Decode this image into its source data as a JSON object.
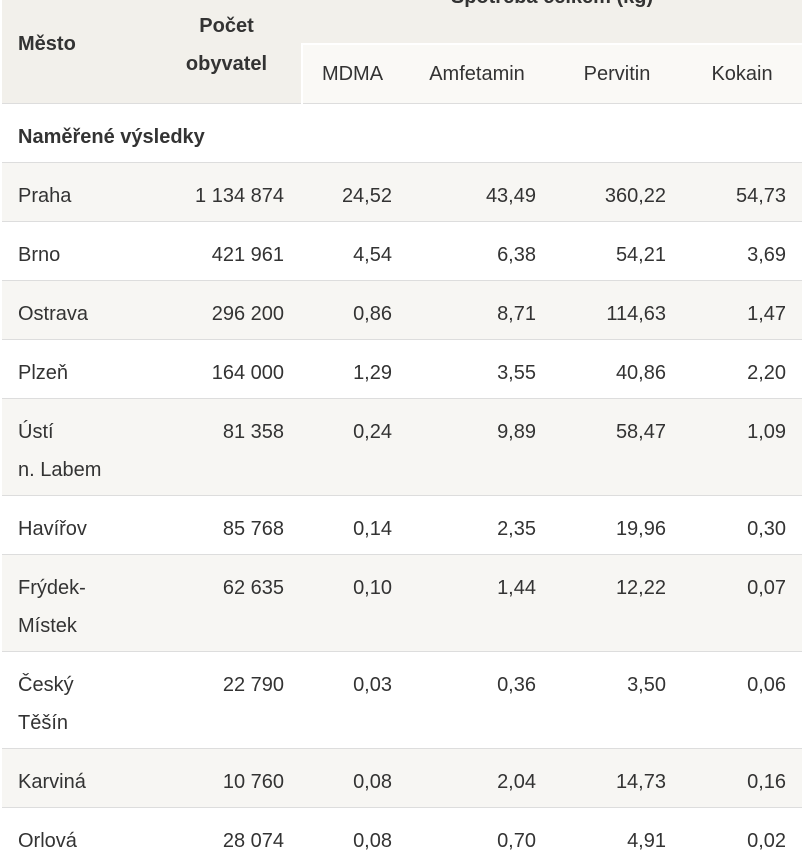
{
  "table": {
    "headers": {
      "city": "Město",
      "population": [
        "Počet",
        "obyvatel"
      ],
      "group": "Spotřeba celkem (kg)",
      "mdma": "MDMA",
      "amfetamin": "Amfetamin",
      "pervitin": "Pervitin",
      "kokain": "Kokain"
    },
    "section_title": "Naměřené výsledky",
    "rows": [
      {
        "city": [
          "Praha"
        ],
        "population": "1 134 874",
        "mdma": "24,52",
        "amfetamin": "43,49",
        "pervitin": "360,22",
        "kokain": "54,73"
      },
      {
        "city": [
          "Brno"
        ],
        "population": "421 961",
        "mdma": "4,54",
        "amfetamin": "6,38",
        "pervitin": "54,21",
        "kokain": "3,69"
      },
      {
        "city": [
          "Ostrava"
        ],
        "population": "296 200",
        "mdma": "0,86",
        "amfetamin": "8,71",
        "pervitin": "114,63",
        "kokain": "1,47"
      },
      {
        "city": [
          "Plzeň"
        ],
        "population": "164 000",
        "mdma": "1,29",
        "amfetamin": "3,55",
        "pervitin": "40,86",
        "kokain": "2,20"
      },
      {
        "city": [
          "Ústí",
          "n. Labem"
        ],
        "population": "81 358",
        "mdma": "0,24",
        "amfetamin": "9,89",
        "pervitin": "58,47",
        "kokain": "1,09"
      },
      {
        "city": [
          "Havířov"
        ],
        "population": "85 768",
        "mdma": "0,14",
        "amfetamin": "2,35",
        "pervitin": "19,96",
        "kokain": "0,30"
      },
      {
        "city": [
          "Frýdek-",
          "Místek"
        ],
        "population": "62 635",
        "mdma": "0,10",
        "amfetamin": "1,44",
        "pervitin": "12,22",
        "kokain": "0,07"
      },
      {
        "city": [
          "Český",
          "Těšín"
        ],
        "population": "22 790",
        "mdma": "0,03",
        "amfetamin": "0,36",
        "pervitin": "3,50",
        "kokain": "0,06"
      },
      {
        "city": [
          "Karviná"
        ],
        "population": "10 760",
        "mdma": "0,08",
        "amfetamin": "2,04",
        "pervitin": "14,73",
        "kokain": "0,16"
      },
      {
        "city": [
          "Orlová"
        ],
        "population": "28 074",
        "mdma": "0,08",
        "amfetamin": "0,70",
        "pervitin": "4,91",
        "kokain": "0,02"
      }
    ]
  }
}
